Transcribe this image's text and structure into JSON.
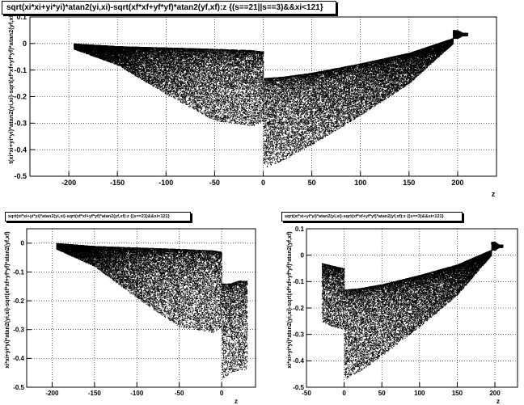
{
  "colors": {
    "background": "#ffffff",
    "frame": "#000000",
    "markers": "#000000",
    "grid": "#000000"
  },
  "chart_data": [
    {
      "id": "top",
      "type": "scatter",
      "title": "sqrt(xi*xi+yi*yi)*atan2(yi,xi)-sqrt(xf*xf+yf*yf)*atan2(yf,xf):z {(s==21||s==3)&&xi<121}",
      "xlabel": "z",
      "ylabel": "t(xi*xi+yi*yi)*atan2(yi,xi)-sqrt(xf*xf+yf*yf)*atan2(yf,xf)",
      "xlim": [
        -240,
        240
      ],
      "ylim": [
        -0.5,
        0.1
      ],
      "xticks": [
        -200,
        -150,
        -100,
        -50,
        0,
        50,
        100,
        150,
        200
      ],
      "xtick_labels": [
        "-200",
        "-150",
        "-100",
        "-50",
        "0",
        "50",
        "100",
        "150",
        "200"
      ],
      "yticks": [
        -0.5,
        -0.4,
        -0.3,
        -0.2,
        -0.1,
        0,
        0.1
      ],
      "ytick_labels": [
        "-0.5",
        "-0.4",
        "-0.3",
        "-0.2",
        "-0.1",
        "0",
        "0.1"
      ],
      "grid": true,
      "series": [
        {
          "marker": "dot",
          "bands": [
            {
              "x": [
                -195,
                -150,
                -100,
                -50,
                -10,
                0
              ],
              "upper": [
                0.0,
                -0.01,
                -0.015,
                -0.02,
                -0.025,
                -0.03
              ],
              "lower": [
                -0.02,
                -0.08,
                -0.19,
                -0.29,
                -0.31,
                -0.29
              ]
            },
            {
              "x": [
                0,
                20,
                50,
                100,
                150,
                195
              ],
              "upper": [
                -0.13,
                -0.125,
                -0.11,
                -0.075,
                -0.035,
                0.02
              ],
              "lower": [
                -0.47,
                -0.44,
                -0.38,
                -0.27,
                -0.15,
                0.0
              ]
            },
            {
              "x": [
                195,
                200,
                205,
                210
              ],
              "upper": [
                0.05,
                0.05,
                0.04,
                0.04
              ],
              "lower": [
                0.02,
                0.02,
                0.03,
                0.03
              ]
            }
          ]
        }
      ]
    },
    {
      "id": "bottom-left",
      "type": "scatter",
      "title": "sqrt(xi*xi+yi*yi)*atan2(yi,xi)-sqrt(xf*xf+yf*yf)*atan2(yf,xf):z {(s==21)&&xi<121}",
      "xlabel": "z",
      "ylabel": "xi*xi+yi*yi)*atan2(yi,xi)-sqrt(xf*xf+yf*yf)*atan2(yf,xf)",
      "xlim": [
        -230,
        40
      ],
      "ylim": [
        -0.5,
        0.05
      ],
      "xticks": [
        -200,
        -150,
        -100,
        -50,
        0
      ],
      "xtick_labels": [
        "-200",
        "-150",
        "-100",
        "-50",
        "0"
      ],
      "yticks": [
        -0.5,
        -0.4,
        -0.3,
        -0.2,
        -0.1,
        0
      ],
      "ytick_labels": [
        "-0.5",
        "-0.4",
        "-0.3",
        "-0.2",
        "-0.1",
        "0"
      ],
      "grid": true,
      "series": [
        {
          "marker": "dot",
          "bands": [
            {
              "x": [
                -195,
                -150,
                -100,
                -50,
                -10,
                0
              ],
              "upper": [
                0.0,
                -0.01,
                -0.015,
                -0.02,
                -0.025,
                -0.03
              ],
              "lower": [
                -0.02,
                -0.08,
                -0.19,
                -0.29,
                -0.31,
                -0.29
              ]
            },
            {
              "x": [
                0,
                10,
                20,
                30
              ],
              "upper": [
                -0.14,
                -0.14,
                -0.13,
                -0.13
              ],
              "lower": [
                -0.47,
                -0.45,
                -0.44,
                -0.44
              ]
            }
          ]
        }
      ]
    },
    {
      "id": "bottom-right",
      "type": "scatter",
      "title": "sqrt(xi*xi+yi*yi)*atan2(yi,xi)-sqrt(xf*xf+yf*yf)*atan2(yf,xf):z {(s==3)&&xi<121}",
      "xlabel": "z",
      "ylabel": "xi*xi+yi*yi)*atan2(yi,xi)-sqrt(xf*xf+yf*yf)*atan2(yf,xf)",
      "xlim": [
        -50,
        230
      ],
      "ylim": [
        -0.5,
        0.1
      ],
      "xticks": [
        -50,
        0,
        50,
        100,
        150,
        200
      ],
      "xtick_labels": [
        "-50",
        "0",
        "50",
        "100",
        "150",
        "200"
      ],
      "yticks": [
        -0.5,
        -0.4,
        -0.3,
        -0.2,
        -0.1,
        0,
        0.1
      ],
      "ytick_labels": [
        "-0.5",
        "-0.4",
        "-0.3",
        "-0.2",
        "-0.1",
        "0",
        "0.1"
      ],
      "grid": true,
      "series": [
        {
          "marker": "dot",
          "bands": [
            {
              "x": [
                -30,
                -15,
                0
              ],
              "upper": [
                -0.03,
                -0.04,
                -0.05
              ],
              "lower": [
                -0.25,
                -0.27,
                -0.28
              ]
            },
            {
              "x": [
                0,
                20,
                50,
                100,
                150,
                195
              ],
              "upper": [
                -0.13,
                -0.125,
                -0.11,
                -0.075,
                -0.035,
                0.02
              ],
              "lower": [
                -0.47,
                -0.44,
                -0.38,
                -0.27,
                -0.15,
                0.0
              ]
            },
            {
              "x": [
                195,
                200,
                205,
                210
              ],
              "upper": [
                0.05,
                0.05,
                0.04,
                0.04
              ],
              "lower": [
                0.02,
                0.02,
                0.03,
                0.03
              ]
            }
          ]
        }
      ]
    }
  ]
}
